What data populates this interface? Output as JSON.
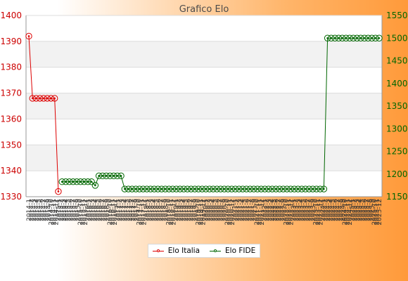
{
  "chart_data": {
    "type": "line",
    "title": "Grafico Elo",
    "grid": true,
    "legend_position": "bottom",
    "y_left": {
      "min": 1330,
      "max": 1400,
      "ticks": [
        1330,
        1340,
        1350,
        1360,
        1370,
        1380,
        1390,
        1400
      ]
    },
    "y_right": {
      "min": 1150,
      "max": 1550,
      "ticks": [
        1150,
        1200,
        1250,
        1300,
        1350,
        1400,
        1450,
        1500,
        1550
      ]
    },
    "x_first_label": "2014-1",
    "x_last_label": "2025-12",
    "series": [
      {
        "name": "Elo Italia",
        "color": "#dd0000",
        "axis": "left",
        "points": [
          {
            "x": 0,
            "y": 1392
          },
          {
            "x": 1,
            "y": 1368
          },
          {
            "x": 2,
            "y": 1368
          },
          {
            "x": 3,
            "y": 1368
          },
          {
            "x": 4,
            "y": 1368
          },
          {
            "x": 5,
            "y": 1368
          },
          {
            "x": 6,
            "y": 1368
          },
          {
            "x": 7,
            "y": 1368
          },
          {
            "x": 8,
            "y": 1332
          }
        ]
      },
      {
        "name": "Elo FIDE",
        "color": "#006600",
        "axis": "right",
        "points": [
          {
            "x": 9,
            "y": 1183
          },
          {
            "x": 10,
            "y": 1183
          },
          {
            "x": 11,
            "y": 1183
          },
          {
            "x": 12,
            "y": 1183
          },
          {
            "x": 13,
            "y": 1183
          },
          {
            "x": 14,
            "y": 1183
          },
          {
            "x": 15,
            "y": 1183
          },
          {
            "x": 16,
            "y": 1183
          },
          {
            "x": 17,
            "y": 1183
          },
          {
            "x": 18,
            "y": 1175
          },
          {
            "x": 19,
            "y": 1196
          },
          {
            "x": 20,
            "y": 1196
          },
          {
            "x": 21,
            "y": 1196
          },
          {
            "x": 22,
            "y": 1196
          },
          {
            "x": 23,
            "y": 1196
          },
          {
            "x": 24,
            "y": 1196
          },
          {
            "x": 25,
            "y": 1196
          },
          {
            "x": 26,
            "y": 1167
          },
          {
            "x": 27,
            "y": 1167
          },
          {
            "x": 28,
            "y": 1167
          },
          {
            "x": 29,
            "y": 1167
          },
          {
            "x": 30,
            "y": 1167
          },
          {
            "x": 31,
            "y": 1167
          },
          {
            "x": 32,
            "y": 1167
          },
          {
            "x": 33,
            "y": 1167
          },
          {
            "x": 34,
            "y": 1167
          },
          {
            "x": 35,
            "y": 1167
          },
          {
            "x": 36,
            "y": 1167
          },
          {
            "x": 37,
            "y": 1167
          },
          {
            "x": 38,
            "y": 1167
          },
          {
            "x": 39,
            "y": 1167
          },
          {
            "x": 40,
            "y": 1167
          },
          {
            "x": 41,
            "y": 1167
          },
          {
            "x": 42,
            "y": 1167
          },
          {
            "x": 43,
            "y": 1167
          },
          {
            "x": 44,
            "y": 1167
          },
          {
            "x": 45,
            "y": 1167
          },
          {
            "x": 46,
            "y": 1167
          },
          {
            "x": 47,
            "y": 1167
          },
          {
            "x": 48,
            "y": 1167
          },
          {
            "x": 49,
            "y": 1167
          },
          {
            "x": 50,
            "y": 1167
          },
          {
            "x": 51,
            "y": 1167
          },
          {
            "x": 52,
            "y": 1167
          },
          {
            "x": 53,
            "y": 1167
          },
          {
            "x": 54,
            "y": 1167
          },
          {
            "x": 55,
            "y": 1167
          },
          {
            "x": 56,
            "y": 1167
          },
          {
            "x": 57,
            "y": 1167
          },
          {
            "x": 58,
            "y": 1167
          },
          {
            "x": 59,
            "y": 1167
          },
          {
            "x": 60,
            "y": 1167
          },
          {
            "x": 61,
            "y": 1167
          },
          {
            "x": 62,
            "y": 1167
          },
          {
            "x": 63,
            "y": 1167
          },
          {
            "x": 64,
            "y": 1167
          },
          {
            "x": 65,
            "y": 1167
          },
          {
            "x": 66,
            "y": 1167
          },
          {
            "x": 67,
            "y": 1167
          },
          {
            "x": 68,
            "y": 1167
          },
          {
            "x": 69,
            "y": 1167
          },
          {
            "x": 70,
            "y": 1167
          },
          {
            "x": 71,
            "y": 1167
          },
          {
            "x": 72,
            "y": 1167
          },
          {
            "x": 73,
            "y": 1167
          },
          {
            "x": 74,
            "y": 1167
          },
          {
            "x": 75,
            "y": 1167
          },
          {
            "x": 76,
            "y": 1167
          },
          {
            "x": 77,
            "y": 1167
          },
          {
            "x": 78,
            "y": 1167
          },
          {
            "x": 79,
            "y": 1167
          },
          {
            "x": 80,
            "y": 1167
          },
          {
            "x": 81,
            "y": 1500
          },
          {
            "x": 82,
            "y": 1500
          },
          {
            "x": 83,
            "y": 1500
          },
          {
            "x": 84,
            "y": 1500
          },
          {
            "x": 85,
            "y": 1500
          },
          {
            "x": 86,
            "y": 1500
          },
          {
            "x": 87,
            "y": 1500
          },
          {
            "x": 88,
            "y": 1500
          },
          {
            "x": 89,
            "y": 1500
          },
          {
            "x": 90,
            "y": 1500
          },
          {
            "x": 91,
            "y": 1500
          },
          {
            "x": 92,
            "y": 1500
          },
          {
            "x": 93,
            "y": 1500
          },
          {
            "x": 94,
            "y": 1500
          },
          {
            "x": 95,
            "y": 1500
          }
        ]
      }
    ]
  }
}
